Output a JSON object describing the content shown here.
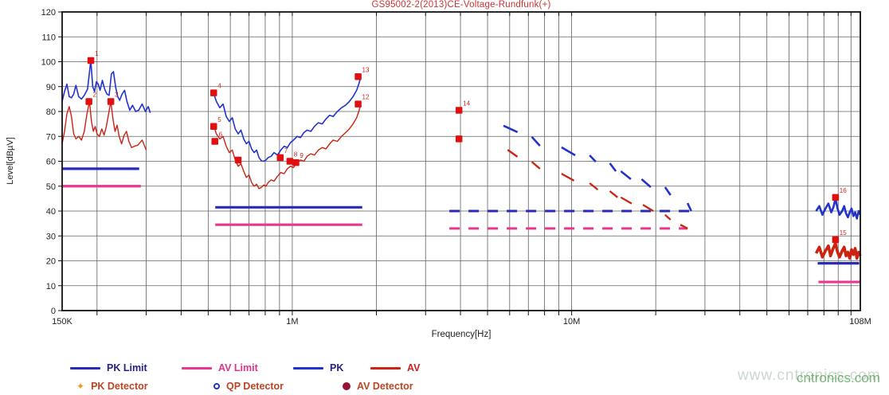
{
  "title": {
    "text": "GS95002-2(2013)CE-Voltage-Rundfunk(+)",
    "color": "#cc3333"
  },
  "watermark": {
    "text1": "www.cntronics.com",
    "text2": "cntronics.com"
  },
  "legend": {
    "row1": [
      {
        "type": "line",
        "color": "#2a2ab8",
        "label": "PK Limit",
        "text_color": "#222288"
      },
      {
        "type": "line",
        "color": "#e8388e",
        "label": "AV Limit",
        "text_color": "#dd3388"
      },
      {
        "type": "line",
        "color": "#2233cc",
        "label": "PK",
        "text_color": "#222288"
      },
      {
        "type": "line",
        "color": "#cc2211",
        "label": "AV",
        "text_color": "#cc2222"
      }
    ],
    "row2": [
      {
        "type": "diamond",
        "color": "#ee9922",
        "label": "PK Detector",
        "text_color": "#bb4422"
      },
      {
        "type": "circle-open",
        "color": "#2233cc",
        "label": "QP Detector",
        "text_color": "#bb4422"
      },
      {
        "type": "circle-filled",
        "color": "#991133",
        "label": "AV Detector",
        "text_color": "#bb4422"
      }
    ]
  },
  "chart_data": {
    "type": "line",
    "title": "GS95002-2(2013)CE-Voltage-Rundfunk(+)",
    "xlabel": "Frequency[Hz]",
    "ylabel": "Level[dBµV]",
    "x_scale": "log",
    "x_range": [
      150000,
      108000000
    ],
    "x_ticks": [
      {
        "v": 150000,
        "label": "150K"
      },
      {
        "v": 1000000,
        "label": "1M"
      },
      {
        "v": 10000000,
        "label": "10M"
      },
      {
        "v": 108000000,
        "label": "108M"
      }
    ],
    "y_range": [
      0,
      120
    ],
    "y_ticks": [
      0,
      10,
      20,
      30,
      40,
      50,
      60,
      70,
      80,
      90,
      100,
      110,
      120
    ],
    "grid": true,
    "legend_position": "bottom",
    "colors": {
      "pk": "#2233cc",
      "av": "#cc2211",
      "pk_limit": "#2a2ab8",
      "av_limit": "#e8388e",
      "marker": "#e01010",
      "marker_label": "#cc2222"
    },
    "limits": {
      "pk_solid": [
        [
          150000,
          57,
          283000,
          57
        ],
        [
          530000,
          41.5,
          1780000,
          41.5
        ],
        [
          76000000,
          19,
          107000000,
          19
        ]
      ],
      "av_solid": [
        [
          150000,
          50,
          287000,
          50
        ],
        [
          530000,
          34.5,
          1780000,
          34.5
        ],
        [
          76500000,
          11.5,
          108000000,
          11.5
        ]
      ],
      "pk_dashed": [
        [
          3650000,
          40,
          26500000,
          40
        ]
      ],
      "av_dashed": [
        [
          3650000,
          33,
          26000000,
          33
        ]
      ]
    },
    "series": [
      {
        "name": "PK",
        "color": "pk",
        "width": 1.6,
        "points": [
          [
            150000,
            84
          ],
          [
            153000,
            88
          ],
          [
            156000,
            91
          ],
          [
            159000,
            86
          ],
          [
            162000,
            85.5
          ],
          [
            165000,
            87
          ],
          [
            168000,
            90.5
          ],
          [
            172000,
            86
          ],
          [
            176000,
            85
          ],
          [
            180000,
            86.5
          ],
          [
            185000,
            89
          ],
          [
            190000,
            100.5
          ],
          [
            193000,
            90
          ],
          [
            196000,
            88
          ],
          [
            199000,
            92
          ],
          [
            202000,
            91
          ],
          [
            205000,
            88.5
          ],
          [
            209000,
            92.5
          ],
          [
            213000,
            89
          ],
          [
            217000,
            87
          ],
          [
            221000,
            86.5
          ],
          [
            225000,
            95
          ],
          [
            229000,
            96
          ],
          [
            233000,
            90
          ],
          [
            237000,
            86
          ],
          [
            241000,
            84.5
          ],
          [
            246000,
            87
          ],
          [
            251000,
            88.5
          ],
          [
            256000,
            84
          ],
          [
            262000,
            80.5
          ],
          [
            268000,
            82.5
          ],
          [
            275000,
            80
          ],
          [
            282000,
            80.5
          ],
          [
            290000,
            83
          ],
          [
            298000,
            80
          ],
          [
            305000,
            82
          ],
          [
            310000,
            79.5
          ]
        ]
      },
      {
        "name": "AV",
        "color": "av",
        "width": 1.4,
        "points": [
          [
            150000,
            67
          ],
          [
            153000,
            72
          ],
          [
            156000,
            79
          ],
          [
            159000,
            82
          ],
          [
            162000,
            78
          ],
          [
            165000,
            71
          ],
          [
            168000,
            69
          ],
          [
            172000,
            70
          ],
          [
            176000,
            68.5
          ],
          [
            180000,
            72
          ],
          [
            184000,
            79
          ],
          [
            188000,
            84
          ],
          [
            191000,
            76
          ],
          [
            194000,
            72
          ],
          [
            197000,
            74
          ],
          [
            200000,
            71
          ],
          [
            204000,
            70
          ],
          [
            208000,
            73
          ],
          [
            212000,
            70.5
          ],
          [
            216000,
            74
          ],
          [
            220000,
            79
          ],
          [
            224000,
            84
          ],
          [
            228000,
            77
          ],
          [
            232000,
            72
          ],
          [
            236000,
            74.5
          ],
          [
            240000,
            70
          ],
          [
            245000,
            67
          ],
          [
            250000,
            70.5
          ],
          [
            255000,
            72
          ],
          [
            260000,
            68
          ],
          [
            266000,
            65.5
          ],
          [
            272000,
            66
          ],
          [
            280000,
            66.5
          ],
          [
            290000,
            68.5
          ],
          [
            300000,
            64.5
          ]
        ]
      },
      {
        "name": "PK",
        "color": "pk",
        "width": 1.6,
        "points": [
          [
            520000,
            88
          ],
          [
            535000,
            84
          ],
          [
            550000,
            81.5
          ],
          [
            565000,
            83
          ],
          [
            580000,
            78
          ],
          [
            595000,
            76
          ],
          [
            610000,
            77.5
          ],
          [
            625000,
            73
          ],
          [
            640000,
            71
          ],
          [
            655000,
            72.5
          ],
          [
            670000,
            69
          ],
          [
            685000,
            67
          ],
          [
            700000,
            68
          ],
          [
            715000,
            65
          ],
          [
            730000,
            63.5
          ],
          [
            745000,
            64.5
          ],
          [
            760000,
            61.5
          ],
          [
            775000,
            60.2
          ],
          [
            790000,
            60
          ],
          [
            805000,
            60.5
          ],
          [
            820000,
            61.5
          ],
          [
            840000,
            62
          ],
          [
            860000,
            63.5
          ],
          [
            885000,
            62.5
          ],
          [
            910000,
            64.5
          ],
          [
            935000,
            66
          ],
          [
            960000,
            65.5
          ],
          [
            985000,
            67.5
          ],
          [
            1010000,
            68.5
          ],
          [
            1040000,
            70
          ],
          [
            1070000,
            69.5
          ],
          [
            1100000,
            71.5
          ],
          [
            1130000,
            72.5
          ],
          [
            1165000,
            72
          ],
          [
            1200000,
            74
          ],
          [
            1240000,
            75.5
          ],
          [
            1280000,
            75
          ],
          [
            1320000,
            77
          ],
          [
            1360000,
            78.5
          ],
          [
            1400000,
            78
          ],
          [
            1450000,
            80
          ],
          [
            1500000,
            81.5
          ],
          [
            1550000,
            82.5
          ],
          [
            1600000,
            84
          ],
          [
            1650000,
            86
          ],
          [
            1700000,
            88.5
          ],
          [
            1730000,
            91
          ],
          [
            1760000,
            94
          ]
        ]
      },
      {
        "name": "AV",
        "color": "av",
        "width": 1.4,
        "points": [
          [
            520000,
            75
          ],
          [
            535000,
            71
          ],
          [
            550000,
            69
          ],
          [
            565000,
            70
          ],
          [
            580000,
            66
          ],
          [
            595000,
            63.5
          ],
          [
            610000,
            64.5
          ],
          [
            625000,
            60.5
          ],
          [
            640000,
            58
          ],
          [
            655000,
            59
          ],
          [
            670000,
            56
          ],
          [
            685000,
            53.5
          ],
          [
            700000,
            54.5
          ],
          [
            715000,
            51.5
          ],
          [
            730000,
            50
          ],
          [
            745000,
            50.8
          ],
          [
            760000,
            49
          ],
          [
            775000,
            49.5
          ],
          [
            790000,
            50.5
          ],
          [
            805000,
            50
          ],
          [
            820000,
            51.5
          ],
          [
            840000,
            52.5
          ],
          [
            860000,
            52
          ],
          [
            885000,
            54
          ],
          [
            910000,
            55.5
          ],
          [
            935000,
            55
          ],
          [
            960000,
            57
          ],
          [
            985000,
            58
          ],
          [
            1010000,
            57.5
          ],
          [
            1040000,
            59.5
          ],
          [
            1070000,
            60.5
          ],
          [
            1100000,
            60
          ],
          [
            1130000,
            62
          ],
          [
            1165000,
            63
          ],
          [
            1200000,
            62.5
          ],
          [
            1240000,
            64.5
          ],
          [
            1280000,
            65.5
          ],
          [
            1320000,
            65
          ],
          [
            1360000,
            67
          ],
          [
            1400000,
            68.5
          ],
          [
            1450000,
            68
          ],
          [
            1500000,
            70
          ],
          [
            1550000,
            71.5
          ],
          [
            1600000,
            73
          ],
          [
            1650000,
            75
          ],
          [
            1700000,
            77.5
          ],
          [
            1730000,
            80
          ],
          [
            1760000,
            83
          ]
        ]
      },
      {
        "name": "PK",
        "color": "pk",
        "width": 2.6,
        "points": [
          [
            75000000,
            40
          ],
          [
            77000000,
            42
          ],
          [
            79000000,
            38.5
          ],
          [
            81000000,
            41
          ],
          [
            83000000,
            43
          ],
          [
            85000000,
            39.5
          ],
          [
            86500000,
            41.5
          ],
          [
            88000000,
            45
          ],
          [
            89500000,
            41
          ],
          [
            91000000,
            38.5
          ],
          [
            93000000,
            40
          ],
          [
            94500000,
            42
          ],
          [
            96000000,
            39
          ],
          [
            97500000,
            37.5
          ],
          [
            99000000,
            39.5
          ],
          [
            100500000,
            41
          ],
          [
            102000000,
            38
          ],
          [
            103500000,
            39.5
          ],
          [
            105000000,
            37
          ],
          [
            106500000,
            40
          ],
          [
            108000000,
            38.5
          ]
        ]
      },
      {
        "name": "AV",
        "color": "av",
        "width": 3.6,
        "points": [
          [
            75000000,
            23
          ],
          [
            77000000,
            25.5
          ],
          [
            79000000,
            21.5
          ],
          [
            81000000,
            24
          ],
          [
            83000000,
            26
          ],
          [
            84500000,
            22
          ],
          [
            86000000,
            24.5
          ],
          [
            88000000,
            27
          ],
          [
            89500000,
            23.5
          ],
          [
            91000000,
            21.5
          ],
          [
            93000000,
            24
          ],
          [
            94500000,
            25.5
          ],
          [
            96000000,
            22
          ],
          [
            97500000,
            23.5
          ],
          [
            99000000,
            21
          ],
          [
            100500000,
            24.5
          ],
          [
            102000000,
            22.5
          ],
          [
            103500000,
            25
          ],
          [
            105000000,
            21
          ],
          [
            106500000,
            23.5
          ],
          [
            108000000,
            22
          ]
        ]
      }
    ],
    "dash_segments": {
      "pk": [
        [
          5700000,
          74.3,
          6400000,
          71.7
        ],
        [
          7200000,
          69.8,
          7700000,
          66.2
        ],
        [
          9200000,
          65.6,
          10300000,
          62.4
        ],
        [
          11600000,
          62.4,
          12200000,
          59.8
        ],
        [
          13700000,
          59.2,
          14400000,
          56.0
        ],
        [
          15000000,
          56.0,
          16300000,
          52.8
        ],
        [
          17800000,
          52.8,
          19200000,
          49.6
        ],
        [
          21600000,
          49.6,
          22600000,
          46.4
        ],
        [
          26000000,
          43.2,
          26800000,
          40.0
        ]
      ],
      "av": [
        [
          5900000,
          64.6,
          6400000,
          61.8
        ],
        [
          7200000,
          59.8,
          7700000,
          57.0
        ],
        [
          9200000,
          55.0,
          10200000,
          52.2
        ],
        [
          11600000,
          51.2,
          12400000,
          48.6
        ],
        [
          13700000,
          48.0,
          14600000,
          45.5
        ],
        [
          15000000,
          45.5,
          16400000,
          43.0
        ],
        [
          18000000,
          42.5,
          19600000,
          40.0
        ],
        [
          21600000,
          38.5,
          22600000,
          36.5
        ],
        [
          24500000,
          34.5,
          26000000,
          33.0
        ]
      ]
    },
    "markers": [
      {
        "f": 190000,
        "l": 100.5,
        "label": "1"
      },
      {
        "f": 187000,
        "l": 84,
        "label": "2"
      },
      {
        "f": 224000,
        "l": 84,
        "label": "3"
      },
      {
        "f": 523000,
        "l": 87.5,
        "label": "4"
      },
      {
        "f": 523000,
        "l": 74,
        "label": "5"
      },
      {
        "f": 528000,
        "l": 68,
        "label": "6"
      },
      {
        "f": 640000,
        "l": 60.5,
        "label": ""
      },
      {
        "f": 905000,
        "l": 61.5,
        "label": "7"
      },
      {
        "f": 980000,
        "l": 60,
        "label": "8"
      },
      {
        "f": 1030000,
        "l": 59.5,
        "label": "9"
      },
      {
        "f": 1720000,
        "l": 83,
        "label": "12"
      },
      {
        "f": 1720000,
        "l": 94,
        "label": "13"
      },
      {
        "f": 3950000,
        "l": 80.5,
        "label": "14"
      },
      {
        "f": 3950000,
        "l": 69,
        "label": ""
      },
      {
        "f": 88000000,
        "l": 45.5,
        "label": "16"
      },
      {
        "f": 88000000,
        "l": 28.5,
        "label": "15"
      }
    ]
  }
}
